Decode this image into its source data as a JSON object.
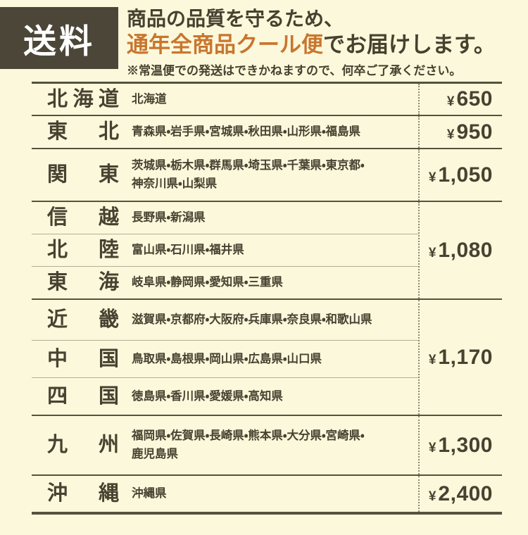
{
  "header": {
    "badge": "送料",
    "title_line1": "商品の品質を守るため、",
    "title_highlight": "通年全商品クール便",
    "title_line2_rest": "でお届けします。",
    "note": "※常温便での発送はできかねますので、何卒ご了承ください。"
  },
  "colors": {
    "background": "#fcf8db",
    "badge_background": "#4c4638",
    "text": "#474231",
    "highlight": "#c8762f",
    "rule_dark": "#57513e",
    "rule_light": "#b4ae99",
    "dotted_divider": "#8d8772"
  },
  "table": {
    "groups": [
      {
        "currency": "¥",
        "price": "650",
        "rows": [
          {
            "region": "北海道",
            "prefectures": "北海道"
          }
        ]
      },
      {
        "currency": "¥",
        "price": "950",
        "rows": [
          {
            "region": "東北",
            "prefectures": "青森県・岩手県・宮城県・秋田県・山形県・福島県"
          }
        ]
      },
      {
        "currency": "¥",
        "price": "1,050",
        "rows": [
          {
            "region": "関東",
            "prefectures": "茨城県・栃木県・群馬県・埼玉県・千葉県・東京都・\n神奈川県・山梨県"
          }
        ]
      },
      {
        "currency": "¥",
        "price": "1,080",
        "rows": [
          {
            "region": "信越",
            "prefectures": "長野県・新潟県"
          },
          {
            "region": "北陸",
            "prefectures": "富山県・石川県・福井県"
          },
          {
            "region": "東海",
            "prefectures": "岐阜県・静岡県・愛知県・三重県"
          }
        ]
      },
      {
        "currency": "¥",
        "price": "1,170",
        "rows": [
          {
            "region": "近畿",
            "prefectures": "滋賀県・京都府・大阪府・兵庫県・奈良県・和歌山県"
          },
          {
            "region": "中国",
            "prefectures": "鳥取県・島根県・岡山県・広島県・山口県"
          },
          {
            "region": "四国",
            "prefectures": "徳島県・香川県・愛媛県・高知県"
          }
        ]
      },
      {
        "currency": "¥",
        "price": "1,300",
        "rows": [
          {
            "region": "九州",
            "prefectures": "福岡県・佐賀県・長崎県・熊本県・大分県・宮崎県・\n鹿児島県"
          }
        ]
      },
      {
        "currency": "¥",
        "price": "2,400",
        "rows": [
          {
            "region": "沖縄",
            "prefectures": "沖縄県"
          }
        ]
      }
    ]
  }
}
